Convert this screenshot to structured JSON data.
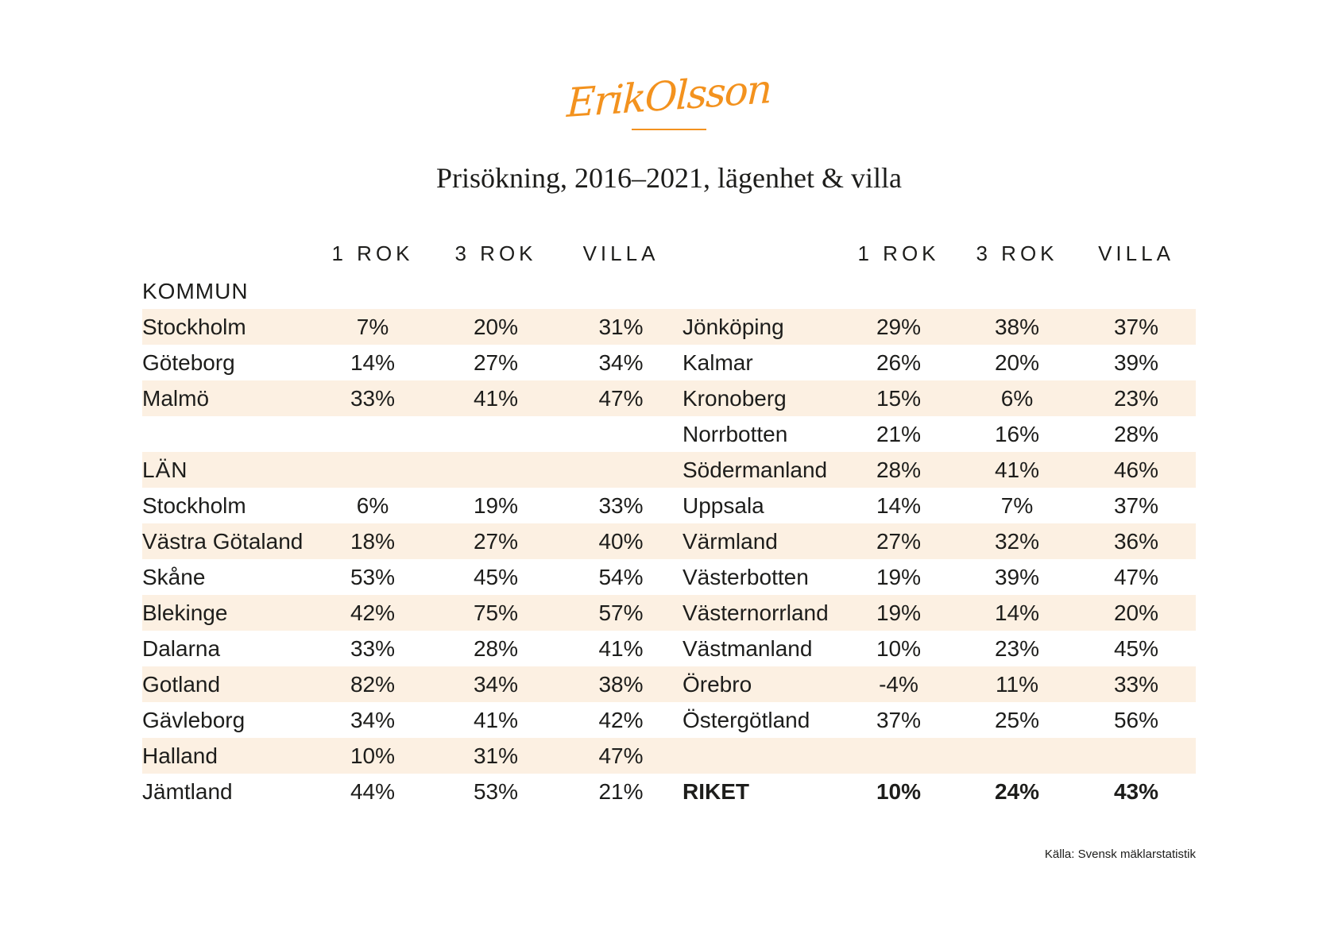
{
  "brand": {
    "logo_text": "ErikOlsson",
    "accent_color": "#F3921E"
  },
  "title": "Prisökning, 2016–2021, lägenhet & villa",
  "colors": {
    "row_stripe": "#FCF0E2",
    "text": "#1D1D1B",
    "accent": "#F3921E"
  },
  "table": {
    "column_headers": [
      "1 ROK",
      "3 ROK",
      "VILLA"
    ],
    "rows": [
      {
        "left": {
          "label": "KOMMUN",
          "section": true,
          "values": [
            "",
            "",
            ""
          ]
        },
        "right": {
          "label": "",
          "values": [
            "",
            "",
            ""
          ]
        }
      },
      {
        "left": {
          "label": "Stockholm",
          "values": [
            "7%",
            "20%",
            "31%"
          ]
        },
        "right": {
          "label": "Jönköping",
          "values": [
            "29%",
            "38%",
            "37%"
          ]
        }
      },
      {
        "left": {
          "label": "Göteborg",
          "values": [
            "14%",
            "27%",
            "34%"
          ]
        },
        "right": {
          "label": "Kalmar",
          "values": [
            "26%",
            "20%",
            "39%"
          ]
        }
      },
      {
        "left": {
          "label": "Malmö",
          "values": [
            "33%",
            "41%",
            "47%"
          ]
        },
        "right": {
          "label": "Kronoberg",
          "values": [
            "15%",
            "6%",
            "23%"
          ]
        }
      },
      {
        "left": {
          "label": "",
          "values": [
            "",
            "",
            ""
          ]
        },
        "right": {
          "label": "Norrbotten",
          "values": [
            "21%",
            "16%",
            "28%"
          ]
        }
      },
      {
        "left": {
          "label": "LÄN",
          "section": true,
          "values": [
            "",
            "",
            ""
          ]
        },
        "right": {
          "label": "Södermanland",
          "values": [
            "28%",
            "41%",
            "46%"
          ]
        }
      },
      {
        "left": {
          "label": "Stockholm",
          "values": [
            "6%",
            "19%",
            "33%"
          ]
        },
        "right": {
          "label": "Uppsala",
          "values": [
            "14%",
            "7%",
            "37%"
          ]
        }
      },
      {
        "left": {
          "label": "Västra Götaland",
          "values": [
            "18%",
            "27%",
            "40%"
          ]
        },
        "right": {
          "label": "Värmland",
          "values": [
            "27%",
            "32%",
            "36%"
          ]
        }
      },
      {
        "left": {
          "label": "Skåne",
          "values": [
            "53%",
            "45%",
            "54%"
          ]
        },
        "right": {
          "label": "Västerbotten",
          "values": [
            "19%",
            "39%",
            "47%"
          ]
        }
      },
      {
        "left": {
          "label": "Blekinge",
          "values": [
            "42%",
            "75%",
            "57%"
          ]
        },
        "right": {
          "label": "Västernorrland",
          "values": [
            "19%",
            "14%",
            "20%"
          ]
        }
      },
      {
        "left": {
          "label": "Dalarna",
          "values": [
            "33%",
            "28%",
            "41%"
          ]
        },
        "right": {
          "label": "Västmanland",
          "values": [
            "10%",
            "23%",
            "45%"
          ]
        }
      },
      {
        "left": {
          "label": "Gotland",
          "values": [
            "82%",
            "34%",
            "38%"
          ]
        },
        "right": {
          "label": "Örebro",
          "values": [
            "-4%",
            "11%",
            "33%"
          ]
        }
      },
      {
        "left": {
          "label": "Gävleborg",
          "values": [
            "34%",
            "41%",
            "42%"
          ]
        },
        "right": {
          "label": "Östergötland",
          "values": [
            "37%",
            "25%",
            "56%"
          ]
        }
      },
      {
        "left": {
          "label": "Halland",
          "values": [
            "10%",
            "31%",
            "47%"
          ]
        },
        "right": {
          "label": "",
          "values": [
            "",
            "",
            ""
          ]
        }
      },
      {
        "left": {
          "label": "Jämtland",
          "values": [
            "44%",
            "53%",
            "21%"
          ]
        },
        "right": {
          "label": "RIKET",
          "bold": true,
          "values": [
            "10%",
            "24%",
            "43%"
          ]
        }
      }
    ]
  },
  "footer": {
    "source": "Källa: Svensk mäklarstatistik"
  },
  "chart_data": {
    "type": "table",
    "title": "Prisökning, 2016–2021, lägenhet & villa",
    "columns": [
      "1 ROK",
      "3 ROK",
      "VILLA"
    ],
    "unit": "%",
    "sections": [
      {
        "name": "KOMMUN",
        "rows": [
          {
            "label": "Stockholm",
            "values": [
              7,
              20,
              31
            ]
          },
          {
            "label": "Göteborg",
            "values": [
              14,
              27,
              34
            ]
          },
          {
            "label": "Malmö",
            "values": [
              33,
              41,
              47
            ]
          }
        ]
      },
      {
        "name": "LÄN",
        "rows": [
          {
            "label": "Stockholm",
            "values": [
              6,
              19,
              33
            ]
          },
          {
            "label": "Västra Götaland",
            "values": [
              18,
              27,
              40
            ]
          },
          {
            "label": "Skåne",
            "values": [
              53,
              45,
              54
            ]
          },
          {
            "label": "Blekinge",
            "values": [
              42,
              75,
              57
            ]
          },
          {
            "label": "Dalarna",
            "values": [
              33,
              28,
              41
            ]
          },
          {
            "label": "Gotland",
            "values": [
              82,
              34,
              38
            ]
          },
          {
            "label": "Gävleborg",
            "values": [
              34,
              41,
              42
            ]
          },
          {
            "label": "Halland",
            "values": [
              10,
              31,
              47
            ]
          },
          {
            "label": "Jämtland",
            "values": [
              44,
              53,
              21
            ]
          },
          {
            "label": "Jönköping",
            "values": [
              29,
              38,
              37
            ]
          },
          {
            "label": "Kalmar",
            "values": [
              26,
              20,
              39
            ]
          },
          {
            "label": "Kronoberg",
            "values": [
              15,
              6,
              23
            ]
          },
          {
            "label": "Norrbotten",
            "values": [
              21,
              16,
              28
            ]
          },
          {
            "label": "Södermanland",
            "values": [
              28,
              41,
              46
            ]
          },
          {
            "label": "Uppsala",
            "values": [
              14,
              7,
              37
            ]
          },
          {
            "label": "Värmland",
            "values": [
              27,
              32,
              36
            ]
          },
          {
            "label": "Västerbotten",
            "values": [
              19,
              39,
              47
            ]
          },
          {
            "label": "Västernorrland",
            "values": [
              19,
              14,
              20
            ]
          },
          {
            "label": "Västmanland",
            "values": [
              10,
              23,
              45
            ]
          },
          {
            "label": "Örebro",
            "values": [
              -4,
              11,
              33
            ]
          },
          {
            "label": "Östergötland",
            "values": [
              37,
              25,
              56
            ]
          }
        ]
      },
      {
        "name": "RIKET",
        "rows": [
          {
            "label": "RIKET",
            "values": [
              10,
              24,
              43
            ]
          }
        ]
      }
    ],
    "source": "Källa: Svensk mäklarstatistik"
  }
}
